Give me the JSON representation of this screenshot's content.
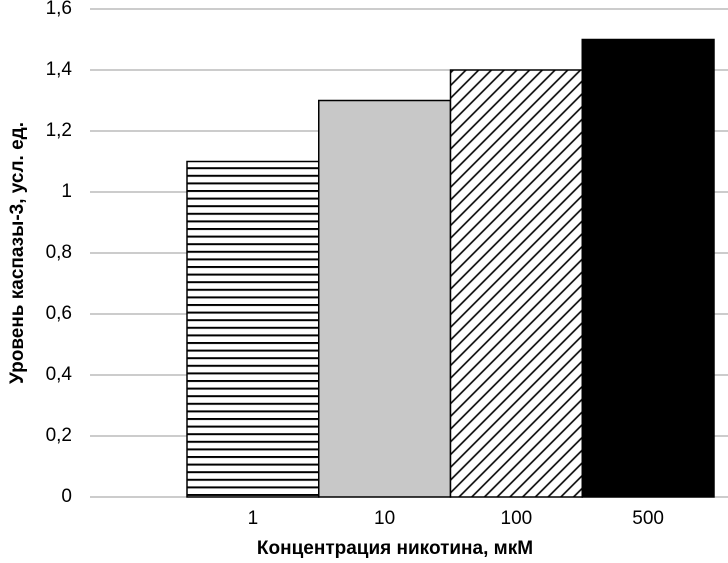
{
  "chart_data": {
    "type": "bar",
    "categories": [
      "1",
      "10",
      "100",
      "500"
    ],
    "values": [
      1.1,
      1.3,
      1.4,
      1.5
    ],
    "colors": [
      "#ffffff",
      "#c8c8c8",
      "#ffffff",
      "#000000"
    ],
    "patterns": [
      "horizontal",
      "none",
      "diagonal",
      "none"
    ],
    "x_label": "Концентрация никотина, мкМ",
    "y_label": "Уровень каспазы-3, усл. ед.",
    "ylim": [
      0,
      1.6
    ],
    "yticks": [
      0,
      {
        "value": 0.2,
        "label": "0,2"
      },
      {
        "value": 0.4,
        "label": "0,4"
      },
      {
        "value": 0.6,
        "label": "0,6"
      },
      {
        "value": 0.8,
        "label": "0,8"
      },
      1,
      {
        "value": 1.2,
        "label": "1,2"
      },
      {
        "value": 1.4,
        "label": "1,4"
      },
      {
        "value": 1.6,
        "label": "1,6"
      }
    ],
    "grid": true
  }
}
